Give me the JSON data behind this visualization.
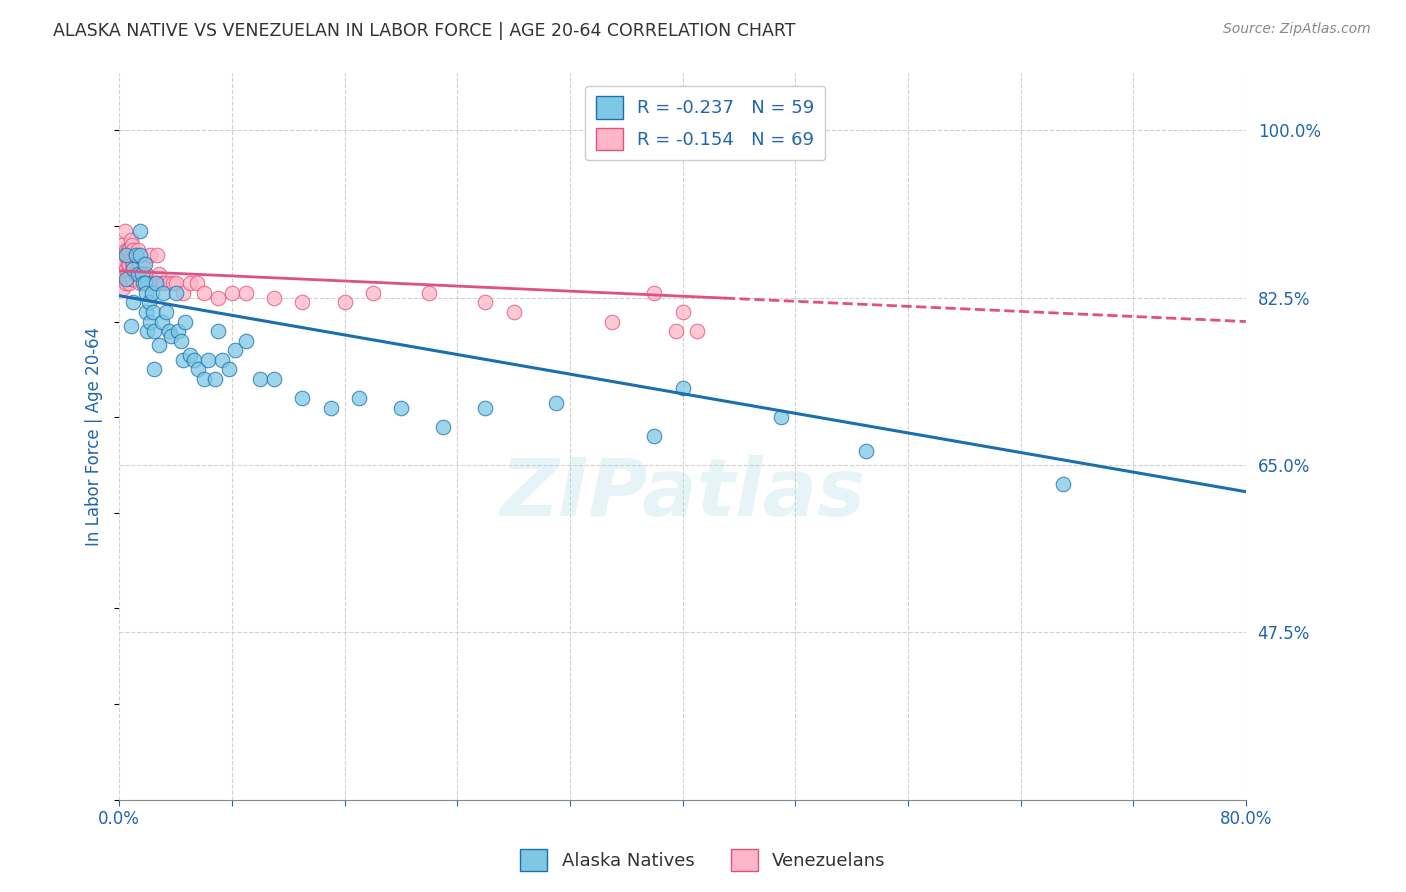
{
  "title": "ALASKA NATIVE VS VENEZUELAN IN LABOR FORCE | AGE 20-64 CORRELATION CHART",
  "source_text": "Source: ZipAtlas.com",
  "ylabel": "In Labor Force | Age 20-64",
  "y_tick_values": [
    0.475,
    0.65,
    0.825,
    1.0
  ],
  "x_lim": [
    0.0,
    0.8
  ],
  "y_lim": [
    0.3,
    1.06
  ],
  "watermark": "ZIPatlas",
  "legend_label_1": "Alaska Natives",
  "legend_label_2": "Venezuelans",
  "r1": -0.237,
  "n1": 59,
  "r2": -0.154,
  "n2": 69,
  "color_blue": "#7ec8e3",
  "color_pink": "#ffb6c8",
  "line_color_blue": "#1a6faf",
  "line_color_pink": "#e05080",
  "alaska_x": [
    0.005,
    0.005,
    0.008,
    0.01,
    0.01,
    0.012,
    0.013,
    0.015,
    0.015,
    0.016,
    0.017,
    0.018,
    0.018,
    0.019,
    0.019,
    0.02,
    0.021,
    0.022,
    0.023,
    0.024,
    0.025,
    0.025,
    0.026,
    0.028,
    0.03,
    0.031,
    0.033,
    0.035,
    0.037,
    0.04,
    0.042,
    0.044,
    0.045,
    0.047,
    0.05,
    0.053,
    0.056,
    0.06,
    0.063,
    0.068,
    0.07,
    0.073,
    0.078,
    0.082,
    0.09,
    0.1,
    0.11,
    0.13,
    0.15,
    0.17,
    0.2,
    0.23,
    0.26,
    0.31,
    0.38,
    0.4,
    0.47,
    0.53,
    0.67
  ],
  "alaska_y": [
    0.845,
    0.87,
    0.795,
    0.855,
    0.82,
    0.87,
    0.85,
    0.895,
    0.87,
    0.85,
    0.84,
    0.84,
    0.86,
    0.83,
    0.81,
    0.79,
    0.82,
    0.8,
    0.83,
    0.81,
    0.79,
    0.75,
    0.84,
    0.775,
    0.8,
    0.83,
    0.81,
    0.79,
    0.785,
    0.83,
    0.79,
    0.78,
    0.76,
    0.8,
    0.765,
    0.76,
    0.75,
    0.74,
    0.76,
    0.74,
    0.79,
    0.76,
    0.75,
    0.77,
    0.78,
    0.74,
    0.74,
    0.72,
    0.71,
    0.72,
    0.71,
    0.69,
    0.71,
    0.715,
    0.68,
    0.73,
    0.7,
    0.665,
    0.63
  ],
  "venezuela_x": [
    0.001,
    0.002,
    0.002,
    0.003,
    0.003,
    0.004,
    0.004,
    0.004,
    0.005,
    0.005,
    0.005,
    0.006,
    0.006,
    0.006,
    0.007,
    0.007,
    0.007,
    0.008,
    0.008,
    0.008,
    0.009,
    0.009,
    0.009,
    0.01,
    0.01,
    0.01,
    0.011,
    0.011,
    0.012,
    0.012,
    0.013,
    0.013,
    0.014,
    0.015,
    0.015,
    0.016,
    0.017,
    0.018,
    0.019,
    0.02,
    0.022,
    0.023,
    0.025,
    0.027,
    0.028,
    0.03,
    0.032,
    0.035,
    0.038,
    0.04,
    0.045,
    0.05,
    0.055,
    0.06,
    0.07,
    0.08,
    0.09,
    0.11,
    0.13,
    0.16,
    0.18,
    0.22,
    0.26,
    0.28,
    0.35,
    0.38,
    0.395,
    0.4,
    0.41
  ],
  "venezuela_y": [
    0.855,
    0.87,
    0.88,
    0.835,
    0.86,
    0.85,
    0.87,
    0.895,
    0.84,
    0.855,
    0.875,
    0.845,
    0.86,
    0.875,
    0.84,
    0.86,
    0.875,
    0.85,
    0.865,
    0.885,
    0.845,
    0.86,
    0.88,
    0.845,
    0.86,
    0.875,
    0.85,
    0.87,
    0.85,
    0.87,
    0.855,
    0.875,
    0.86,
    0.84,
    0.86,
    0.85,
    0.86,
    0.85,
    0.85,
    0.84,
    0.87,
    0.84,
    0.84,
    0.87,
    0.85,
    0.84,
    0.84,
    0.84,
    0.84,
    0.84,
    0.83,
    0.84,
    0.84,
    0.83,
    0.825,
    0.83,
    0.83,
    0.825,
    0.82,
    0.82,
    0.83,
    0.83,
    0.82,
    0.81,
    0.8,
    0.83,
    0.79,
    0.81,
    0.79
  ],
  "background_color": "#ffffff",
  "grid_color": "#cccccc",
  "title_color": "#333333",
  "tick_label_color": "#2166ac"
}
